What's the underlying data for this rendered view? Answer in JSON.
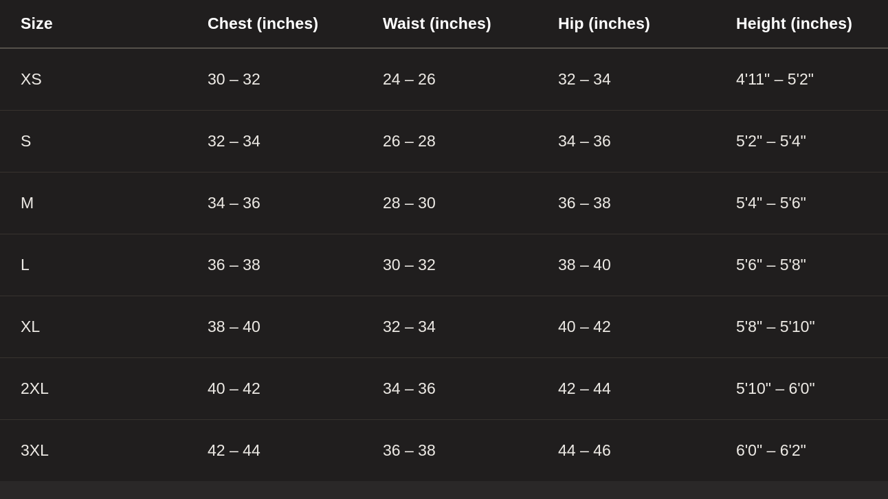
{
  "colors": {
    "page_background": "#201e1e",
    "header_text": "#ffffff",
    "body_text": "#ece9e4",
    "header_divider": "#55514b",
    "row_divider": "#37332e",
    "bottom_strip": "#2a2828"
  },
  "table": {
    "columns": [
      {
        "label": "Size"
      },
      {
        "label": "Chest (inches)"
      },
      {
        "label": "Waist (inches)"
      },
      {
        "label": "Hip (inches)"
      },
      {
        "label": "Height (inches)"
      }
    ],
    "rows": [
      {
        "size": "XS",
        "chest": "30 – 32",
        "waist": "24 – 26",
        "hip": "32 – 34",
        "height": "4'11\" – 5'2\""
      },
      {
        "size": "S",
        "chest": "32 – 34",
        "waist": "26 – 28",
        "hip": "34 – 36",
        "height": "5'2\" – 5'4\""
      },
      {
        "size": "M",
        "chest": "34 – 36",
        "waist": "28 – 30",
        "hip": "36 – 38",
        "height": "5'4\" – 5'6\""
      },
      {
        "size": "L",
        "chest": "36 – 38",
        "waist": "30 – 32",
        "hip": "38 – 40",
        "height": "5'6\" – 5'8\""
      },
      {
        "size": "XL",
        "chest": "38 – 40",
        "waist": "32 – 34",
        "hip": "40 – 42",
        "height": "5'8\" – 5'10\""
      },
      {
        "size": "2XL",
        "chest": "40 – 42",
        "waist": "34 – 36",
        "hip": "42 – 44",
        "height": "5'10\" – 6'0\""
      },
      {
        "size": "3XL",
        "chest": "42 – 44",
        "waist": "36 – 38",
        "hip": "44 – 46",
        "height": "6'0\" – 6'2\""
      }
    ]
  }
}
